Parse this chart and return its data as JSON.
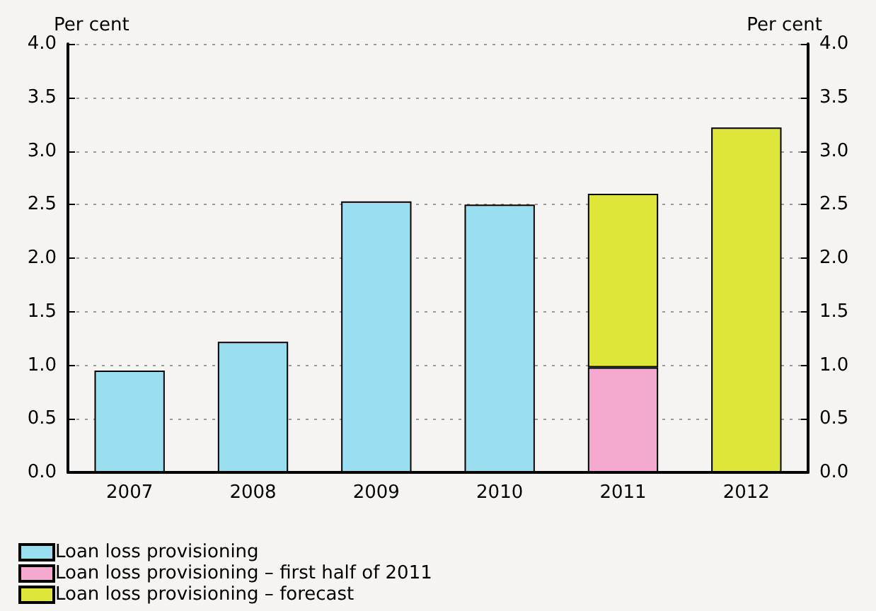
{
  "chart_data": {
    "type": "bar",
    "stacked": true,
    "categories": [
      "2007",
      "2008",
      "2009",
      "2010",
      "2011",
      "2012"
    ],
    "series": [
      {
        "name": "Loan loss provisioning",
        "color": "#99dff0",
        "values": [
          0.95,
          1.22,
          2.53,
          2.5,
          null,
          null
        ]
      },
      {
        "name": "Loan loss provisioning – first half of 2011",
        "color": "#f5a9cf",
        "values": [
          null,
          null,
          null,
          null,
          0.98,
          null
        ]
      },
      {
        "name": "Loan loss provisioning – forecast",
        "color": "#dfe63a",
        "values": [
          null,
          null,
          null,
          null,
          1.62,
          3.22
        ]
      }
    ],
    "ylabel": "Per cent",
    "y2label": "Per cent",
    "ylim": [
      0,
      4
    ],
    "yticks": [
      {
        "value": 0,
        "label": "0.0"
      },
      0.5,
      {
        "value": 1,
        "label": "1.0"
      },
      1.5,
      {
        "value": 2,
        "label": "2.0"
      },
      2.5,
      {
        "value": 3,
        "label": "3.0"
      },
      3.5,
      {
        "value": 4,
        "label": "4.0"
      }
    ],
    "y2lim": [
      0,
      4
    ],
    "y2ticks": [
      {
        "value": 0,
        "label": "0.0"
      },
      0.5,
      {
        "value": 1,
        "label": "1.0"
      },
      1.5,
      {
        "value": 2,
        "label": "2.0"
      },
      2.5,
      {
        "value": 3,
        "label": "3.0"
      },
      3.5,
      {
        "value": 4,
        "label": "4.0"
      }
    ],
    "grid": "y",
    "legend": "bottom left"
  }
}
